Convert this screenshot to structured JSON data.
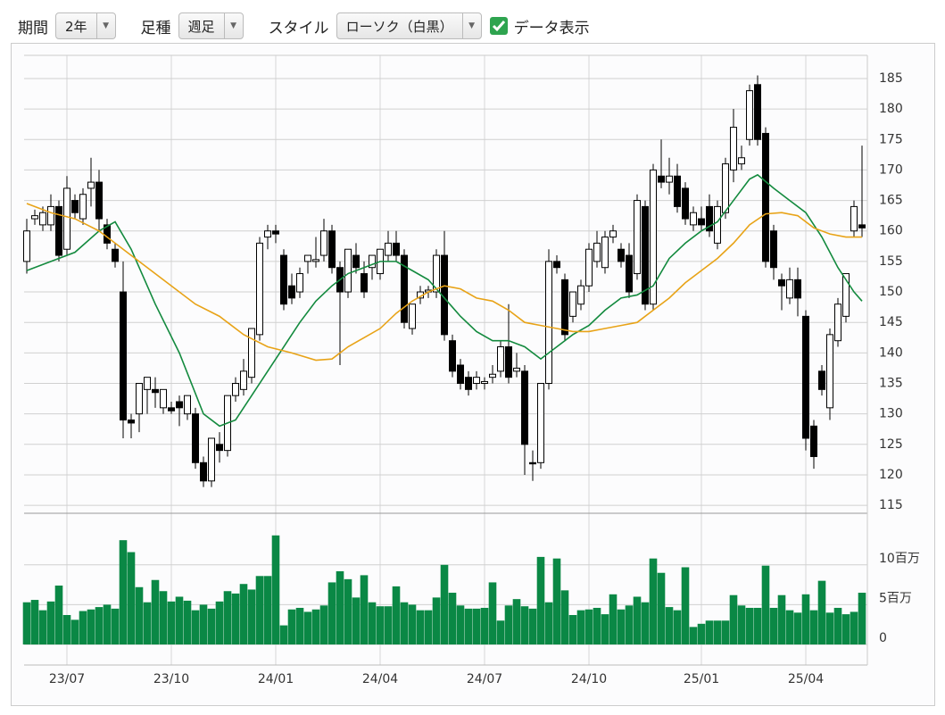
{
  "toolbar": {
    "period_label": "期間",
    "period_value": "2年",
    "bar_label": "足種",
    "bar_value": "週足",
    "style_label": "スタイル",
    "style_value": "ローソク（白黒）",
    "data_label": "データ表示"
  },
  "chart_data": [
    {
      "type": "candlestick",
      "categories": [
        null,
        null,
        null,
        null,
        null,
        "23/07",
        null,
        null,
        null,
        null,
        null,
        null,
        null,
        null,
        null,
        null,
        null,
        null,
        "23/10",
        null,
        null,
        null,
        null,
        null,
        null,
        null,
        null,
        null,
        null,
        null,
        null,
        "24/01",
        null,
        null,
        null,
        null,
        null,
        null,
        null,
        null,
        null,
        null,
        null,
        null,
        "24/04",
        null,
        null,
        null,
        null,
        null,
        null,
        null,
        null,
        null,
        null,
        null,
        null,
        "24/07",
        null,
        null,
        null,
        null,
        null,
        null,
        null,
        null,
        null,
        null,
        null,
        null,
        "24/10",
        null,
        null,
        null,
        null,
        null,
        null,
        null,
        null,
        null,
        null,
        null,
        null,
        null,
        "25/01",
        null,
        null,
        null,
        null,
        null,
        null,
        null,
        null,
        null,
        null,
        null,
        null,
        "25/04",
        null,
        null,
        null,
        null,
        null,
        null,
        null
      ],
      "open": [
        155,
        162,
        161,
        161,
        164,
        157,
        165,
        162,
        167,
        168,
        161,
        157,
        150,
        129,
        130,
        134,
        134,
        131,
        131,
        132,
        130,
        130,
        122,
        119,
        125,
        124,
        133,
        134,
        136,
        143,
        159,
        160,
        156,
        151,
        150,
        155,
        155,
        156,
        160,
        154,
        150,
        156,
        153,
        154,
        153,
        156,
        158,
        156,
        144,
        149,
        150,
        150,
        156,
        142,
        138,
        136,
        135,
        135,
        136,
        137,
        141,
        137,
        137,
        122,
        122,
        135,
        155,
        152,
        146,
        148,
        151,
        155,
        154,
        159,
        157,
        156,
        153,
        164,
        148,
        169,
        168,
        169,
        167,
        161,
        162,
        164,
        158,
        163,
        170,
        171,
        175,
        184,
        176,
        160,
        152,
        149,
        152,
        146,
        128,
        137,
        131,
        142,
        146,
        160,
        161
      ],
      "high": [
        162,
        163.5,
        164,
        166,
        165,
        169,
        166,
        167,
        172,
        170,
        162,
        158,
        155,
        130,
        135,
        136,
        136,
        134,
        132,
        133,
        133,
        131,
        123,
        126,
        127,
        133,
        136,
        139,
        144,
        159,
        161,
        161,
        157,
        153,
        154,
        156,
        159,
        162,
        161,
        155,
        157,
        158,
        155,
        156,
        157,
        160,
        160,
        157,
        148,
        151,
        151,
        157,
        160,
        143,
        139,
        137,
        137,
        136,
        138,
        142,
        148,
        140,
        138,
        124,
        135,
        157,
        156,
        153,
        150,
        152,
        158,
        160,
        160,
        161,
        158,
        158,
        166,
        165,
        171,
        175,
        172,
        171,
        168,
        164,
        164,
        166,
        165,
        172,
        180,
        174,
        184,
        185.5,
        177,
        161,
        153,
        154,
        154,
        147,
        129,
        138,
        144,
        149,
        153,
        165,
        174
      ],
      "low": [
        153,
        161,
        160,
        160,
        155,
        156,
        162,
        161,
        164,
        160,
        157,
        154,
        126,
        126,
        127,
        130,
        131,
        130,
        130,
        128,
        129,
        121,
        118,
        118,
        122,
        123,
        132,
        133,
        135,
        142,
        157,
        158,
        147,
        148,
        149,
        153,
        154,
        155,
        153,
        138,
        149,
        153,
        149,
        152,
        152,
        155,
        155,
        144,
        143,
        148,
        149,
        149,
        142,
        136,
        134,
        133,
        134,
        134,
        135,
        136,
        135,
        136,
        120,
        119,
        121,
        134,
        153,
        142,
        145,
        147,
        150,
        154,
        153,
        158,
        154,
        149,
        152,
        147,
        147,
        167,
        166,
        163,
        161,
        160,
        160,
        159,
        157,
        162,
        168,
        170,
        174,
        174,
        154,
        152,
        147,
        148,
        146,
        124,
        121,
        133,
        129,
        141,
        145,
        159,
        159
      ],
      "close": [
        160,
        162.5,
        163,
        164,
        156,
        167,
        163,
        166,
        168,
        162,
        158,
        155,
        129,
        128.5,
        135,
        136,
        133.5,
        134,
        130.5,
        131,
        133,
        122,
        119,
        126,
        124,
        133,
        135,
        137,
        144,
        158,
        160,
        159.5,
        148,
        149,
        153,
        156,
        155.3,
        160,
        154,
        150,
        157,
        154,
        150,
        156,
        157,
        158,
        156,
        145,
        148,
        150,
        150.3,
        156,
        143,
        137,
        135,
        134,
        136,
        135.3,
        136.5,
        141,
        136,
        137.5,
        125,
        121.8,
        135,
        155,
        154,
        143,
        150,
        151,
        157,
        158,
        159,
        160,
        155,
        150,
        165,
        148,
        170,
        168,
        169,
        164,
        162,
        163,
        161,
        160,
        164,
        171,
        177,
        172,
        183,
        175,
        155,
        154,
        151,
        152,
        149,
        126,
        123,
        134,
        143,
        148,
        153,
        164,
        160.5
      ],
      "up_color": "#ffffff",
      "down_color": "#000000",
      "lines": [
        {
          "color": "#138a3e",
          "x": [
            0,
            3,
            6,
            9,
            11,
            13,
            16,
            19,
            22,
            24,
            26,
            28,
            30,
            32,
            34,
            36,
            38,
            40,
            42,
            44,
            46,
            48,
            50,
            52,
            54,
            56,
            58,
            60,
            62,
            64,
            66,
            68,
            70,
            72,
            74,
            76,
            78,
            80,
            82,
            84,
            86,
            88,
            90,
            91,
            93,
            95,
            97,
            99,
            101,
            103,
            104
          ],
          "values": [
            153.5,
            155,
            156.5,
            160,
            161.5,
            157,
            148,
            140,
            130,
            128,
            129,
            133,
            137,
            141,
            145,
            148.5,
            151,
            153,
            154,
            155,
            155,
            153.5,
            152,
            149,
            146,
            143.5,
            142,
            142,
            141,
            139,
            141,
            143,
            144.5,
            147,
            149,
            149.5,
            151,
            155.5,
            158,
            160,
            161.5,
            165,
            168.5,
            169.2,
            167,
            165,
            163,
            159,
            154,
            150,
            148.5
          ]
        },
        {
          "color": "#e8a317",
          "x": [
            0,
            3,
            6,
            9,
            12,
            15,
            18,
            21,
            24,
            27,
            30,
            33,
            36,
            38,
            40,
            42,
            44,
            46,
            48,
            50,
            52,
            54,
            56,
            58,
            60,
            62,
            64,
            66,
            68,
            70,
            72,
            74,
            76,
            78,
            80,
            82,
            84,
            86,
            88,
            90,
            92,
            94,
            96,
            98,
            100,
            102,
            104
          ],
          "values": [
            164.5,
            163,
            162,
            160,
            157,
            154,
            151,
            148,
            146,
            143,
            141,
            140,
            138.8,
            139,
            141,
            142.5,
            144,
            146.5,
            148.5,
            150,
            151,
            150.5,
            149,
            148.5,
            147,
            145,
            144.5,
            144,
            143.5,
            143.5,
            144,
            144.5,
            145,
            147,
            149,
            151.5,
            153.5,
            155.5,
            158,
            161,
            162.8,
            163,
            162.5,
            160.5,
            159.5,
            159,
            159
          ]
        }
      ],
      "ylim": [
        113.7,
        188.8
      ],
      "yticks": [
        115,
        120,
        125,
        130,
        135,
        140,
        145,
        150,
        155,
        160,
        165,
        170,
        175,
        180,
        185
      ],
      "grid": true
    },
    {
      "type": "bar",
      "color": "#0a8845",
      "values": [
        5.3,
        5.6,
        4.3,
        5.4,
        7.4,
        3.7,
        3.1,
        4.2,
        4.4,
        4.7,
        5.0,
        4.5,
        13.1,
        11.6,
        7.2,
        5.3,
        8.1,
        6.7,
        5.4,
        6.0,
        5.5,
        4.3,
        5.0,
        4.5,
        5.4,
        6.7,
        6.4,
        7.6,
        6.9,
        8.6,
        8.6,
        13.7,
        2.4,
        4.4,
        4.6,
        4.1,
        4.4,
        4.9,
        7.8,
        9.2,
        8.2,
        5.9,
        8.7,
        5.3,
        4.8,
        4.8,
        7.3,
        5.3,
        5.0,
        4.3,
        4.3,
        5.9,
        10.0,
        6.5,
        4.9,
        4.5,
        4.5,
        4.6,
        7.8,
        3.0,
        4.9,
        5.7,
        4.8,
        4.5,
        11.0,
        5.3,
        10.8,
        6.8,
        3.7,
        4.3,
        4.4,
        4.6,
        3.8,
        6.3,
        4.4,
        4.9,
        6.0,
        5.3,
        10.8,
        9.0,
        4.7,
        4.3,
        9.7,
        2.2,
        2.6,
        3.0,
        3.0,
        3.0,
        6.2,
        4.9,
        4.6,
        4.6,
        9.9,
        4.6,
        6.2,
        4.3,
        4.0,
        6.3,
        4.3,
        8.0,
        4.0,
        4.6,
        3.8,
        4.1,
        6.5
      ],
      "ylim": [
        0,
        14.8
      ],
      "yticks": [
        0,
        {
          "value": 5,
          "label": "5百万"
        },
        {
          "value": 10,
          "label": "10百万"
        }
      ],
      "grid": true
    }
  ]
}
